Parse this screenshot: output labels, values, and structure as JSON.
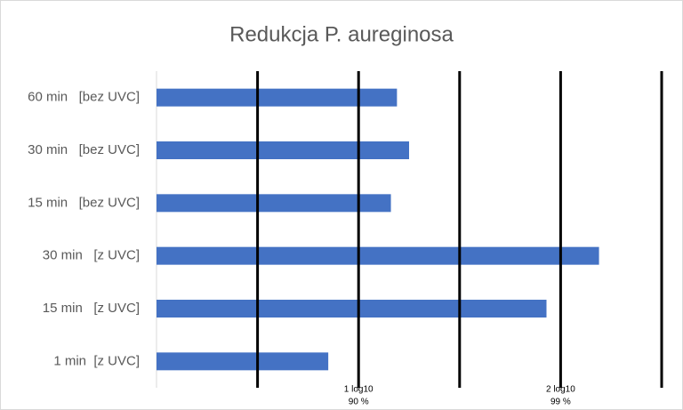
{
  "chart_data": {
    "type": "barh",
    "title": "Redukcja P. aureginosa",
    "categories": [
      "60 min   [bez UVC]",
      "30 min   [bez UVC]",
      "15 min   [bez UVC]",
      "30 min   [z UVC]",
      "15 min   [z UVC]",
      "1 min  [z UVC]"
    ],
    "values": [
      1.19,
      1.25,
      1.16,
      2.19,
      1.93,
      0.85
    ],
    "color": "#4472c4",
    "xlim": [
      0,
      2.5
    ],
    "xticks": [
      0.5,
      1,
      1.5,
      2,
      2.5
    ],
    "xtick_labels": [
      {
        "value": 1,
        "label": "1 log10",
        "sublabel": "90 %"
      },
      {
        "value": 2,
        "label": "2 log10",
        "sublabel": "99 %"
      }
    ],
    "grid": true
  }
}
